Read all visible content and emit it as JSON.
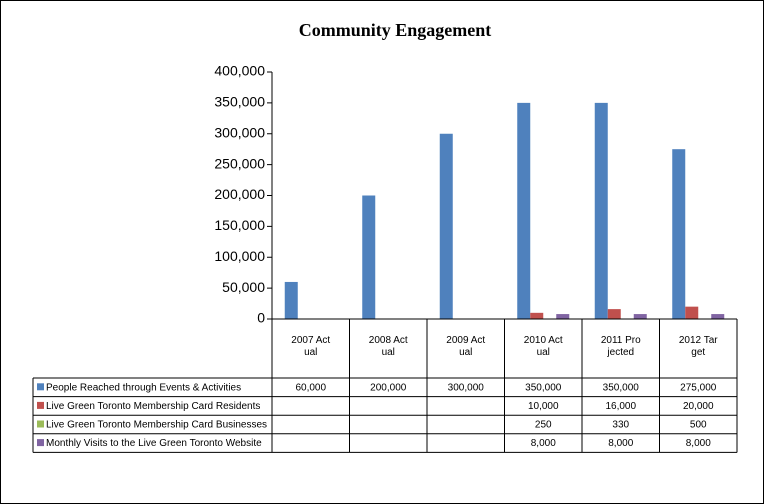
{
  "chart_data": {
    "type": "bar",
    "title": "Community Engagement",
    "categories": [
      "2007 Actual",
      "2008 Actual",
      "2009 Actual",
      "2010 Actual",
      "2011 Projected",
      "2012 Target"
    ],
    "series": [
      {
        "name": "People Reached through Events & Activities",
        "color": "#4f81bd",
        "values": [
          60000,
          200000,
          300000,
          350000,
          350000,
          275000
        ],
        "value_labels": [
          "60,000",
          "200,000",
          "300,000",
          "350,000",
          "350,000",
          "275,000"
        ]
      },
      {
        "name": "Live Green Toronto Membership Card Residents",
        "color": "#c0504d",
        "values": [
          null,
          null,
          null,
          10000,
          16000,
          20000
        ],
        "value_labels": [
          null,
          null,
          null,
          "10,000",
          "16,000",
          "20,000"
        ]
      },
      {
        "name": "Live Green Toronto Membership Card Businesses",
        "color": "#9bbb59",
        "values": [
          null,
          null,
          null,
          250,
          330,
          500
        ],
        "value_labels": [
          null,
          null,
          null,
          "250",
          "330",
          "500"
        ]
      },
      {
        "name": "Monthly Visits to the Live Green Toronto Website",
        "color": "#8064a2",
        "values": [
          null,
          null,
          null,
          8000,
          8000,
          8000
        ],
        "value_labels": [
          null,
          null,
          null,
          "8,000",
          "8,000",
          "8,000"
        ]
      }
    ],
    "ylim": [
      0,
      400000
    ],
    "yticks": [
      0,
      {
        "value": 50000,
        "label": "50,000"
      },
      {
        "value": 100000,
        "label": "100,000"
      },
      {
        "value": 150000,
        "label": "150,000"
      },
      {
        "value": 200000,
        "label": "200,000"
      },
      {
        "value": 250000,
        "label": "250,000"
      },
      {
        "value": 300000,
        "label": "300,000"
      },
      {
        "value": 350000,
        "label": "350,000"
      },
      {
        "value": 400000,
        "label": "400,000"
      }
    ],
    "grid": false
  }
}
